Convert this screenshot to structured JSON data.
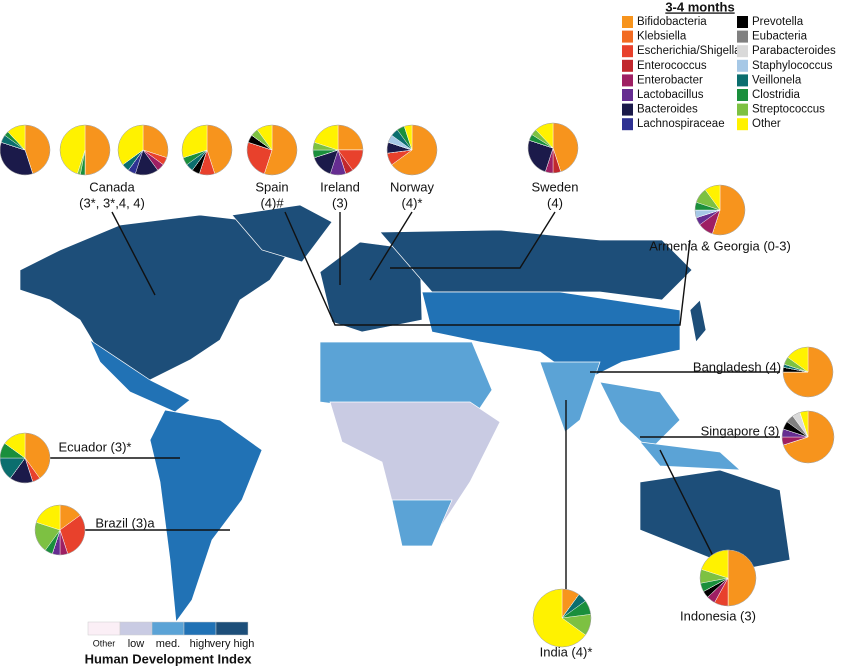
{
  "legend": {
    "title": "3-4 months",
    "taxa": [
      {
        "name": "Bifidobacteria",
        "color": "#f7941d"
      },
      {
        "name": "Klebsiella",
        "color": "#f26b22"
      },
      {
        "name": "Escherichia/Shigella",
        "color": "#e8412c"
      },
      {
        "name": "Enterococcus",
        "color": "#c1272d"
      },
      {
        "name": "Enterobacter",
        "color": "#9e1f63"
      },
      {
        "name": "Lactobacillus",
        "color": "#662d91"
      },
      {
        "name": "Bacteroides",
        "color": "#1b1a4a"
      },
      {
        "name": "Lachnospiraceae",
        "color": "#2e3192"
      },
      {
        "name": "Prevotella",
        "color": "#000000"
      },
      {
        "name": "Eubacteria",
        "color": "#808080"
      },
      {
        "name": "Parabacteroides",
        "color": "#d9d9d9"
      },
      {
        "name": "Staphylococcus",
        "color": "#a6c8e6"
      },
      {
        "name": "Veillonela",
        "color": "#0b6e6e"
      },
      {
        "name": "Clostridia",
        "color": "#1a8f3c"
      },
      {
        "name": "Streptococcus",
        "color": "#7dc142"
      },
      {
        "name": "Other",
        "color": "#fff200"
      }
    ]
  },
  "sites": [
    {
      "name": "Canada",
      "note": "(3*, 3*,4, 4)",
      "pies": [
        [
          45,
          0,
          0,
          0,
          0,
          0,
          35,
          0,
          0,
          0,
          0,
          0,
          5,
          3,
          0,
          12
        ],
        [
          50,
          0,
          0,
          0,
          0,
          0,
          0,
          0,
          0,
          0,
          0,
          0,
          0,
          3,
          2,
          45
        ],
        [
          30,
          0,
          5,
          0,
          5,
          0,
          15,
          5,
          0,
          0,
          0,
          0,
          5,
          0,
          0,
          35
        ],
        [
          45,
          0,
          10,
          0,
          0,
          0,
          0,
          0,
          5,
          0,
          0,
          0,
          5,
          5,
          0,
          30
        ]
      ]
    },
    {
      "name": "Spain",
      "note": "(4)#",
      "pies": [
        [
          55,
          0,
          25,
          0,
          0,
          0,
          0,
          0,
          5,
          0,
          0,
          0,
          0,
          0,
          5,
          10
        ]
      ]
    },
    {
      "name": "Ireland",
      "note": "(3)",
      "pies": [
        [
          25,
          0,
          15,
          5,
          0,
          10,
          15,
          0,
          0,
          0,
          0,
          0,
          0,
          5,
          5,
          20
        ]
      ]
    },
    {
      "name": "Norway",
      "note": "(4)*",
      "pies": [
        [
          65,
          0,
          8,
          0,
          0,
          0,
          7,
          0,
          0,
          0,
          0,
          5,
          5,
          5,
          0,
          5
        ]
      ]
    },
    {
      "name": "Sweden",
      "note": "(4)",
      "pies": [
        [
          45,
          0,
          0,
          5,
          5,
          0,
          25,
          0,
          0,
          0,
          0,
          0,
          0,
          4,
          4,
          12
        ]
      ]
    },
    {
      "name": "Armenia & Georgia (0-3)",
      "pies": [
        [
          55,
          0,
          0,
          0,
          10,
          5,
          0,
          0,
          0,
          0,
          0,
          5,
          0,
          5,
          10,
          10
        ]
      ]
    },
    {
      "name": "Bangladesh (4)",
      "pies": [
        [
          75,
          0,
          0,
          0,
          0,
          0,
          0,
          0,
          3,
          0,
          0,
          0,
          2,
          0,
          5,
          15
        ]
      ]
    },
    {
      "name": "Singapore (3)",
      "pies": [
        [
          70,
          0,
          0,
          0,
          5,
          5,
          0,
          0,
          5,
          5,
          5,
          0,
          0,
          0,
          0,
          5
        ]
      ]
    },
    {
      "name": "Ecuador (3)*",
      "pies": [
        [
          40,
          0,
          5,
          0,
          0,
          0,
          15,
          0,
          0,
          0,
          0,
          0,
          15,
          10,
          0,
          15
        ]
      ]
    },
    {
      "name": "Brazil (3)a",
      "pies": [
        [
          15,
          0,
          30,
          0,
          5,
          5,
          0,
          0,
          0,
          0,
          0,
          0,
          0,
          5,
          20,
          20
        ]
      ]
    },
    {
      "name": "Indonesia (3)",
      "pies": [
        [
          50,
          0,
          8,
          0,
          5,
          0,
          0,
          0,
          4,
          0,
          0,
          0,
          0,
          5,
          8,
          20
        ]
      ]
    },
    {
      "name": "India (4)*",
      "pies": [
        [
          10,
          0,
          0,
          0,
          0,
          0,
          0,
          0,
          0,
          0,
          0,
          0,
          5,
          8,
          12,
          65
        ]
      ]
    }
  ],
  "hdi": {
    "title": "Human Development Index",
    "levels": [
      {
        "label": "Other",
        "color": "#fbeff6"
      },
      {
        "label": "low",
        "color": "#c9cbe3"
      },
      {
        "label": "med.",
        "color": "#5ba3d6"
      },
      {
        "label": "high",
        "color": "#2172b5"
      },
      {
        "label": "very high",
        "color": "#1d4e79"
      }
    ]
  }
}
